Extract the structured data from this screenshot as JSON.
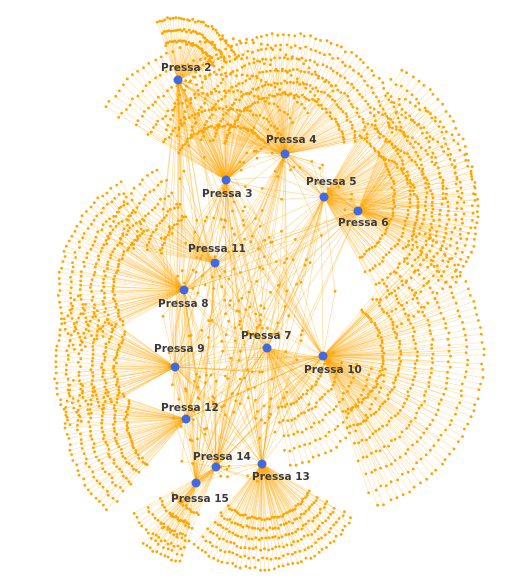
{
  "network": {
    "colors": {
      "leaf": "#ffa500",
      "edge": "#ffa500",
      "hub": "#4169e1",
      "label": "#3a3a3a",
      "background": "#ffffff"
    },
    "hubs": [
      {
        "id": "p2",
        "label": "Pressa 2"
      },
      {
        "id": "p3",
        "label": "Pressa 3"
      },
      {
        "id": "p4",
        "label": "Pressa 4"
      },
      {
        "id": "p5",
        "label": "Pressa 5"
      },
      {
        "id": "p6",
        "label": "Pressa 6"
      },
      {
        "id": "p7",
        "label": "Pressa 7"
      },
      {
        "id": "p8",
        "label": "Pressa 8"
      },
      {
        "id": "p9",
        "label": "Pressa 9"
      },
      {
        "id": "p10",
        "label": "Pressa 10"
      },
      {
        "id": "p11",
        "label": "Pressa 11"
      },
      {
        "id": "p12",
        "label": "Pressa 12"
      },
      {
        "id": "p13",
        "label": "Pressa 13"
      },
      {
        "id": "p14",
        "label": "Pressa 14"
      },
      {
        "id": "p15",
        "label": "Pressa 15"
      }
    ]
  }
}
